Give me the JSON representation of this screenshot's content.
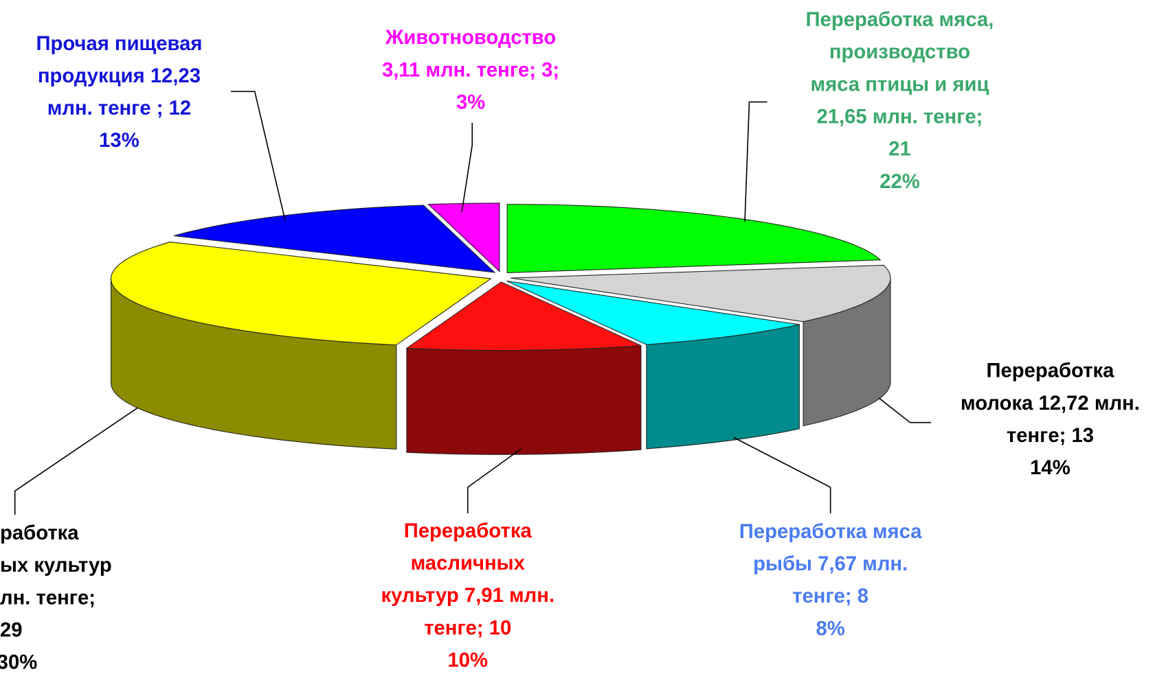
{
  "chart_data": {
    "type": "pie3d",
    "slices": [
      {
        "label_lines": [
          "Переработка мяса,",
          "производство",
          "мяса птицы и яиц",
          "21,65 млн. тенге;",
          "21"
        ],
        "value": 22,
        "value_label": "22%",
        "color": "#00ff00",
        "text_color": "#3aa86c"
      },
      {
        "label_lines": [
          "Переработка",
          "молока 12,72 млн.",
          "тенге; 13"
        ],
        "value": 14,
        "value_label": "14%",
        "color": "#d4d4d4",
        "text_color": "#000000"
      },
      {
        "label_lines": [
          "Переработка мяса",
          "рыбы 7,67 млн.",
          "тенге; 8"
        ],
        "value": 8,
        "value_label": "8%",
        "color": "#00ffff",
        "text_color": "#4a7cf0"
      },
      {
        "label_lines": [
          "Переработка",
          "масличных",
          "культур 7,91 млн.",
          "тенге; 10"
        ],
        "value": 10,
        "value_label": "10%",
        "color": "#ff1010",
        "text_color": "#ff0000"
      },
      {
        "label_lines": [
          "работка",
          "ых культур",
          "лн. тенге;",
          "29"
        ],
        "value": 30,
        "value_label": "30%",
        "color": "#ffff00",
        "text_color": "#000000"
      },
      {
        "label_lines": [
          "Прочая пищевая",
          "продукция 12,23",
          "млн. тенге ; 12"
        ],
        "value": 13,
        "value_label": "13%",
        "color": "#0000ff",
        "text_color": "#1414d8"
      },
      {
        "label_lines": [
          "Животноводство",
          "3,11 млн. тенге; 3;"
        ],
        "value": 3,
        "value_label": "3%",
        "color": "#ff00ff",
        "text_color": "#ff00ff"
      }
    ]
  }
}
